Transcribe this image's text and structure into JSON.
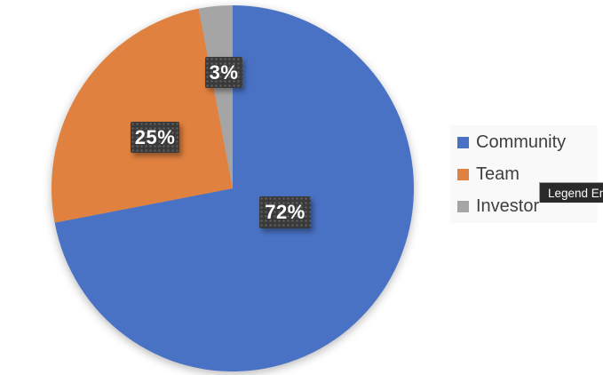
{
  "chart_data": {
    "type": "pie",
    "categories": [
      "Community",
      "Team",
      "Investor"
    ],
    "values": [
      72,
      25,
      3
    ],
    "labels": [
      "72%",
      "25%",
      "3%"
    ],
    "colors": [
      "#4a72c4",
      "#e0813f",
      "#a5a5a5"
    ],
    "start_angle_deg": 0,
    "direction": "clockwise",
    "legend_position": "right",
    "title": ""
  },
  "legend": {
    "items": [
      {
        "label": "Community",
        "color": "#4a72c4"
      },
      {
        "label": "Team",
        "color": "#e0813f"
      },
      {
        "label": "Investor",
        "color": "#a5a5a5"
      }
    ]
  },
  "tooltip": {
    "text": "Legend En"
  }
}
